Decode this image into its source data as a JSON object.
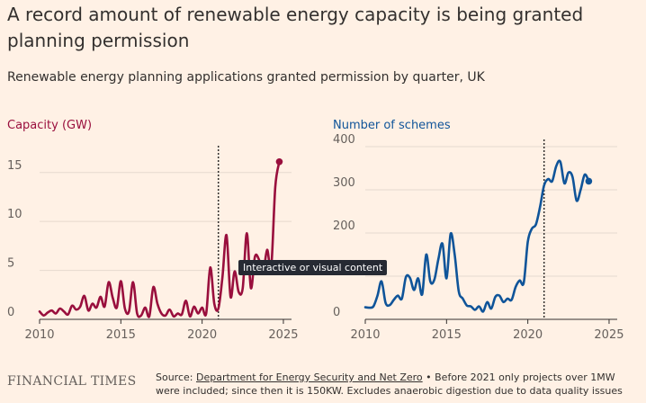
{
  "title": "A record amount of renewable energy capacity is being granted planning permission",
  "subtitle": "Renewable energy planning applications granted permission by quarter, UK",
  "tooltip": "Interactive or visual content",
  "colors": {
    "capacity": "#990f3d",
    "schemes": "#0f5499",
    "background": "#fff1e5",
    "grid": "#e6d9ce",
    "marker": "#33302e"
  },
  "footer": {
    "logo": "FINANCIAL TIMES",
    "source_prefix": "Source: ",
    "source_link": "Department for Energy Security and Net Zero",
    "note": " • Before 2021 only projects over 1MW were included; since then it is 150KW. Excludes anaerobic digestion due to data quality issues"
  },
  "chart_data": [
    {
      "type": "line",
      "title": "Capacity (GW)",
      "xlim": [
        2010,
        2025.5
      ],
      "ylim": [
        0,
        17
      ],
      "xticks": [
        2010,
        2015,
        2020,
        2025
      ],
      "yticks": [
        0,
        5,
        10,
        15
      ],
      "marker_year": 2021,
      "series": [
        {
          "name": "Capacity (GW)",
          "x": [
            2010.0,
            2010.25,
            2010.5,
            2010.75,
            2011.0,
            2011.25,
            2011.5,
            2011.75,
            2012.0,
            2012.25,
            2012.5,
            2012.75,
            2013.0,
            2013.25,
            2013.5,
            2013.75,
            2014.0,
            2014.25,
            2014.5,
            2014.75,
            2015.0,
            2015.25,
            2015.5,
            2015.75,
            2016.0,
            2016.25,
            2016.5,
            2016.75,
            2017.0,
            2017.25,
            2017.5,
            2017.75,
            2018.0,
            2018.25,
            2018.5,
            2018.75,
            2019.0,
            2019.25,
            2019.5,
            2019.75,
            2020.0,
            2020.25,
            2020.5,
            2020.75,
            2021.0,
            2021.25,
            2021.5,
            2021.75,
            2022.0,
            2022.25,
            2022.5,
            2022.75,
            2023.0,
            2023.25,
            2023.5,
            2023.75,
            2024.0,
            2024.25,
            2024.5,
            2024.75,
            2025.0,
            2025.25
          ],
          "values": [
            0.8,
            0.4,
            0.7,
            0.9,
            0.6,
            1.1,
            0.8,
            0.5,
            1.4,
            1.0,
            1.3,
            2.4,
            0.9,
            1.6,
            1.2,
            2.3,
            1.3,
            3.8,
            2.2,
            1.2,
            3.9,
            1.1,
            0.8,
            3.8,
            0.6,
            0.4,
            1.2,
            0.3,
            3.3,
            1.6,
            0.6,
            0.4,
            1.0,
            0.3,
            0.6,
            0.5,
            1.9,
            0.3,
            1.3,
            0.6,
            1.2,
            0.6,
            5.3,
            1.6,
            1.1,
            4.3,
            8.6,
            2.3,
            4.9,
            2.8,
            3.2,
            8.8,
            3.2,
            6.4,
            6.1,
            4.7,
            7.1,
            5.3,
            13.5,
            16.1,
            null,
            null
          ]
        }
      ]
    },
    {
      "type": "line",
      "title": "Number of schemes",
      "xlim": [
        2010,
        2025.5
      ],
      "ylim": [
        0,
        400
      ],
      "xticks": [
        2010,
        2015,
        2020,
        2025
      ],
      "yticks": [
        0,
        100,
        200,
        300,
        400
      ],
      "marker_year": 2021,
      "series": [
        {
          "name": "Number of schemes",
          "x": [
            2010.0,
            2010.25,
            2010.5,
            2010.75,
            2011.0,
            2011.25,
            2011.5,
            2011.75,
            2012.0,
            2012.25,
            2012.5,
            2012.75,
            2013.0,
            2013.25,
            2013.5,
            2013.75,
            2014.0,
            2014.25,
            2014.5,
            2014.75,
            2015.0,
            2015.25,
            2015.5,
            2015.75,
            2016.0,
            2016.25,
            2016.5,
            2016.75,
            2017.0,
            2017.25,
            2017.5,
            2017.75,
            2018.0,
            2018.25,
            2018.5,
            2018.75,
            2019.0,
            2019.25,
            2019.5,
            2019.75,
            2020.0,
            2020.25,
            2020.5,
            2020.75,
            2021.0,
            2021.25,
            2021.5,
            2021.75,
            2022.0,
            2022.25,
            2022.5,
            2022.75,
            2023.0,
            2023.25,
            2023.5,
            2023.75,
            2024.0,
            2024.25,
            2024.5,
            2024.75,
            2025.0,
            2025.25
          ],
          "values": [
            28,
            27,
            30,
            55,
            88,
            38,
            33,
            45,
            55,
            48,
            98,
            96,
            68,
            95,
            58,
            150,
            88,
            92,
            140,
            175,
            95,
            198,
            150,
            65,
            48,
            32,
            30,
            22,
            30,
            18,
            40,
            25,
            52,
            55,
            40,
            48,
            45,
            75,
            90,
            85,
            180,
            210,
            220,
            260,
            310,
            325,
            320,
            355,
            365,
            315,
            340,
            330,
            275,
            300,
            335,
            320,
            null,
            null,
            null,
            null,
            null,
            null
          ]
        }
      ]
    }
  ]
}
